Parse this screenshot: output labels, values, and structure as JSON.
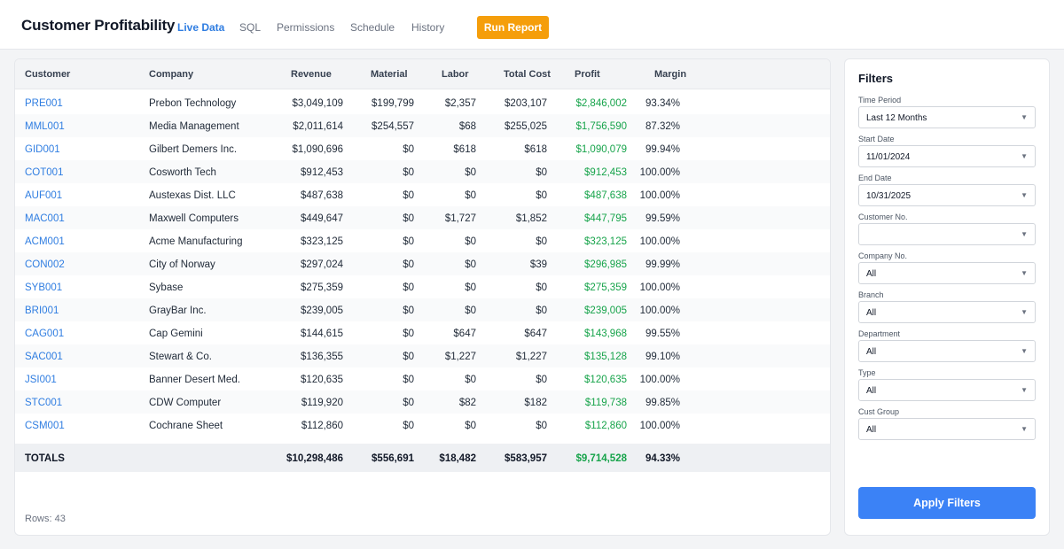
{
  "header": {
    "title": "Customer Profitability",
    "nav": [
      "Live Data",
      "SQL",
      "Permissions",
      "Schedule",
      "History"
    ],
    "run_report": "Run Report"
  },
  "colors": {
    "accent": "#2f7de1",
    "profit": "#16a34a",
    "run": "#f59e0b",
    "apply": "#3b82f6"
  },
  "table": {
    "columns": [
      "Customer",
      "Company",
      "Revenue",
      "Material",
      "Labor",
      "Total Cost",
      "Profit",
      "Margin"
    ],
    "rows": [
      [
        "PRE001",
        "Prebon Technology",
        "$3,049,109",
        "$199,799",
        "$2,357",
        "$203,107",
        "$2,846,002",
        "93.34%"
      ],
      [
        "MML001",
        "Media Management",
        "$2,011,614",
        "$254,557",
        "$68",
        "$255,025",
        "$1,756,590",
        "87.32%"
      ],
      [
        "GID001",
        "Gilbert Demers Inc.",
        "$1,090,696",
        "$0",
        "$618",
        "$618",
        "$1,090,079",
        "99.94%"
      ],
      [
        "COT001",
        "Cosworth Tech",
        "$912,453",
        "$0",
        "$0",
        "$0",
        "$912,453",
        "100.00%"
      ],
      [
        "AUF001",
        "Austexas Dist. LLC",
        "$487,638",
        "$0",
        "$0",
        "$0",
        "$487,638",
        "100.00%"
      ],
      [
        "MAC001",
        "Maxwell Computers",
        "$449,647",
        "$0",
        "$1,727",
        "$1,852",
        "$447,795",
        "99.59%"
      ],
      [
        "ACM001",
        "Acme Manufacturing",
        "$323,125",
        "$0",
        "$0",
        "$0",
        "$323,125",
        "100.00%"
      ],
      [
        "CON002",
        "City of Norway",
        "$297,024",
        "$0",
        "$0",
        "$39",
        "$296,985",
        "99.99%"
      ],
      [
        "SYB001",
        "Sybase",
        "$275,359",
        "$0",
        "$0",
        "$0",
        "$275,359",
        "100.00%"
      ],
      [
        "BRI001",
        "GrayBar Inc.",
        "$239,005",
        "$0",
        "$0",
        "$0",
        "$239,005",
        "100.00%"
      ],
      [
        "CAG001",
        "Cap Gemini",
        "$144,615",
        "$0",
        "$647",
        "$647",
        "$143,968",
        "99.55%"
      ],
      [
        "SAC001",
        "Stewart & Co.",
        "$136,355",
        "$0",
        "$1,227",
        "$1,227",
        "$135,128",
        "99.10%"
      ],
      [
        "JSI001",
        "Banner Desert Med.",
        "$120,635",
        "$0",
        "$0",
        "$0",
        "$120,635",
        "100.00%"
      ],
      [
        "STC001",
        "CDW Computer",
        "$119,920",
        "$0",
        "$82",
        "$182",
        "$119,738",
        "99.85%"
      ],
      [
        "CSM001",
        "Cochrane Sheet",
        "$112,860",
        "$0",
        "$0",
        "$0",
        "$112,860",
        "100.00%"
      ]
    ],
    "totals": {
      "label": "TOTALS",
      "revenue": "$10,298,486",
      "material": "$556,691",
      "labor": "$18,482",
      "total_cost": "$583,957",
      "profit": "$9,714,528",
      "margin": "94.33%"
    },
    "rows_count": "Rows: 43"
  },
  "filters": {
    "title": "Filters",
    "fields": [
      {
        "label": "Time Period",
        "value": "Last 12 Months"
      },
      {
        "label": "Start Date",
        "value": "11/01/2024"
      },
      {
        "label": "End Date",
        "value": "10/31/2025"
      },
      {
        "label": "Customer No.",
        "value": ""
      },
      {
        "label": "Company No.",
        "value": "All"
      },
      {
        "label": "Branch",
        "value": "All"
      },
      {
        "label": "Department",
        "value": "All"
      },
      {
        "label": "Type",
        "value": "All"
      },
      {
        "label": "Cust Group",
        "value": "All"
      }
    ],
    "apply": "Apply Filters"
  },
  "icons": {
    "caret": "caret-down-icon"
  }
}
